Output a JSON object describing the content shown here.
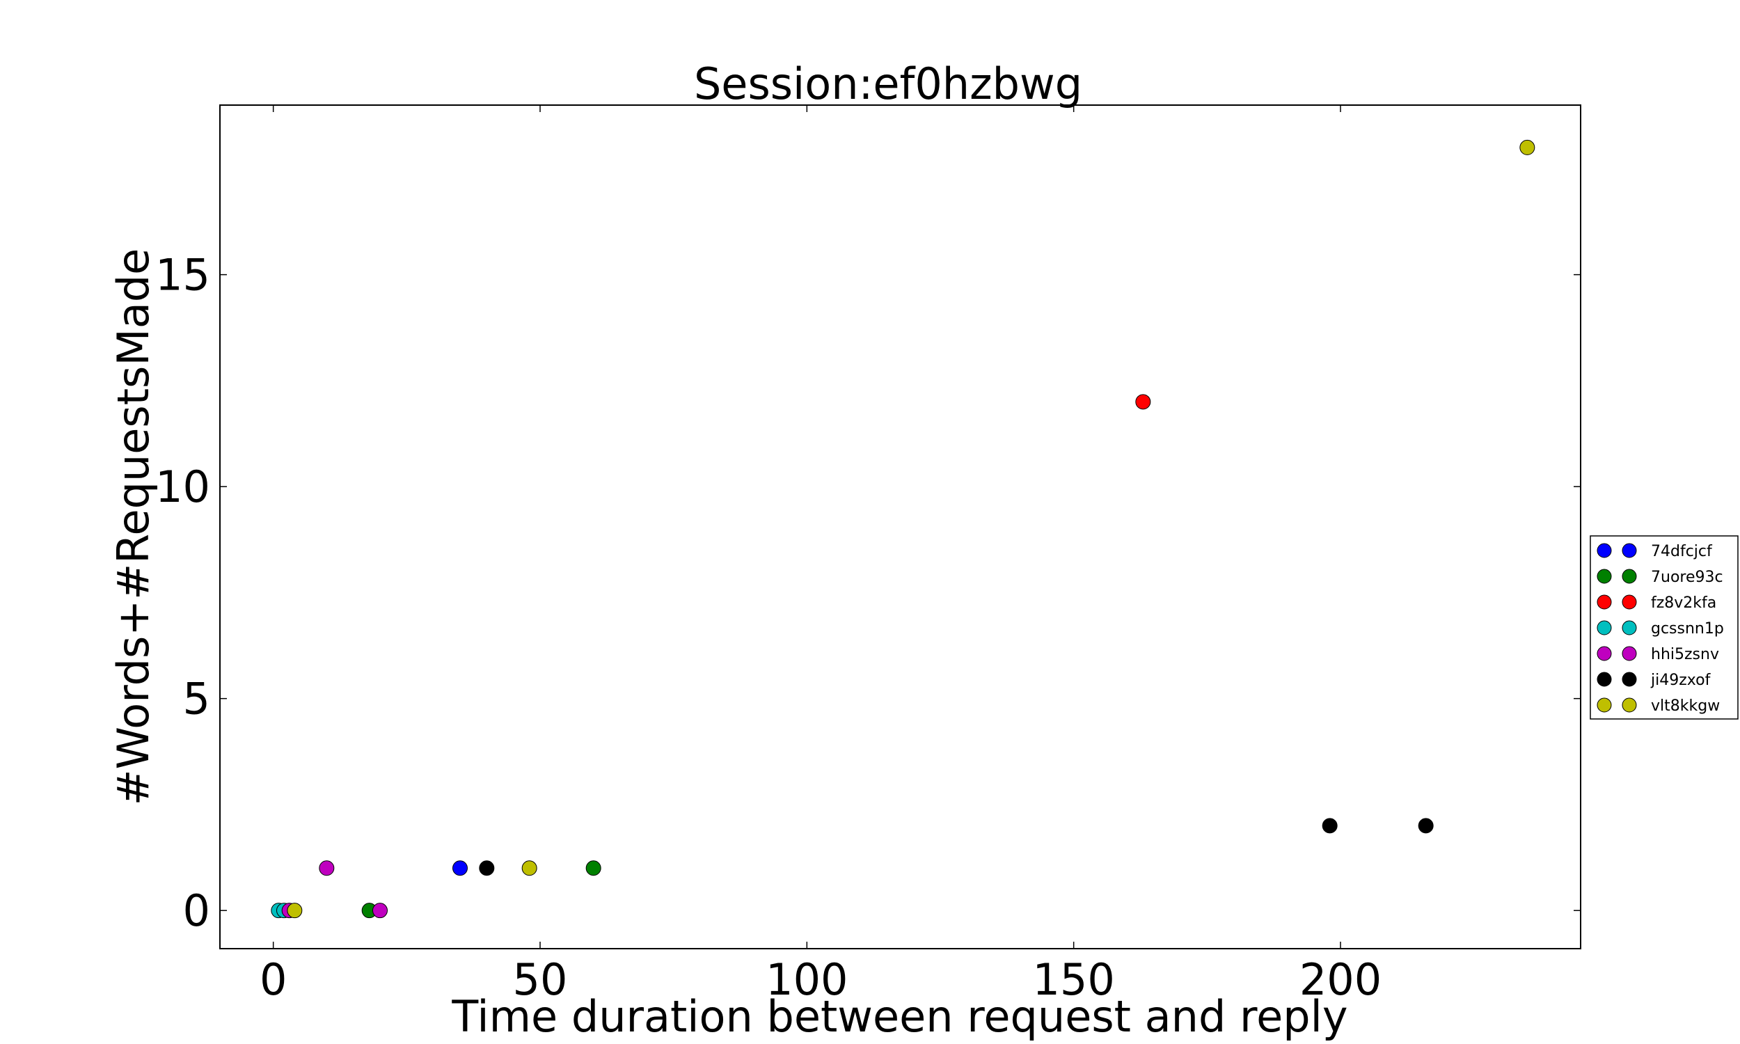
{
  "chart_data": {
    "type": "scatter",
    "title": "Session:ef0hzbwg",
    "xlabel": "Time duration between request and reply",
    "ylabel": "#Words+#RequestsMade",
    "xlim": [
      -10,
      245
    ],
    "ylim": [
      -0.9,
      19
    ],
    "xticks": [
      0,
      50,
      100,
      150,
      200
    ],
    "yticks": [
      0,
      5,
      10,
      15
    ],
    "grid": false,
    "legend_position": "right",
    "series": [
      {
        "name": "74dfcjcf",
        "color": "#0000ff",
        "points": [
          {
            "x": 35,
            "y": 1
          }
        ]
      },
      {
        "name": "7uore93c",
        "color": "#008000",
        "points": [
          {
            "x": 18,
            "y": 0
          },
          {
            "x": 60,
            "y": 1
          }
        ]
      },
      {
        "name": "fz8v2kfa",
        "color": "#ff0000",
        "points": [
          {
            "x": 163,
            "y": 12
          }
        ]
      },
      {
        "name": "gcssnn1p",
        "color": "#00bfbf",
        "points": [
          {
            "x": 1,
            "y": 0
          },
          {
            "x": 2,
            "y": 0
          }
        ]
      },
      {
        "name": "hhi5zsnv",
        "color": "#bf00bf",
        "points": [
          {
            "x": 3,
            "y": 0
          },
          {
            "x": 10,
            "y": 1
          },
          {
            "x": 20,
            "y": 0
          }
        ]
      },
      {
        "name": "ji49zxof",
        "color": "#000000",
        "points": [
          {
            "x": 40,
            "y": 1
          },
          {
            "x": 198,
            "y": 2
          },
          {
            "x": 216,
            "y": 2
          }
        ]
      },
      {
        "name": "vlt8kkgw",
        "color": "#bfbf00",
        "points": [
          {
            "x": 4,
            "y": 0
          },
          {
            "x": 48,
            "y": 1
          },
          {
            "x": 235,
            "y": 18
          }
        ]
      }
    ]
  }
}
